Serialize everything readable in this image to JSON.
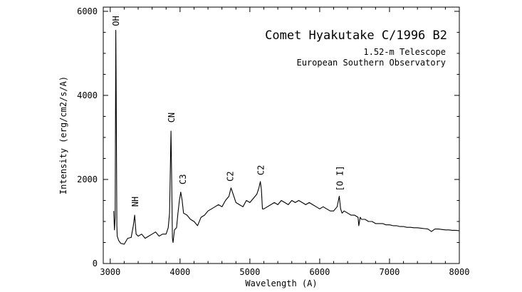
{
  "chart_data": {
    "type": "line",
    "title": "Comet Hyakutake C/1996 B2",
    "subtitle_lines": [
      "1.52-m Telescope",
      "European Southern Observatory"
    ],
    "xlabel": "Wavelength (A)",
    "ylabel": "Intensity (erg/cm2/s/A)",
    "xlim": [
      2900,
      8000
    ],
    "ylim": [
      0,
      6100
    ],
    "xticks": [
      3000,
      4000,
      5000,
      6000,
      7000,
      8000
    ],
    "yticks": [
      0,
      2000,
      4000,
      6000
    ],
    "grid": false,
    "series": [
      {
        "x": [
          3050,
          3060,
          3070,
          3080,
          3085,
          3095,
          3100,
          3120,
          3150,
          3200,
          3250,
          3300,
          3330,
          3350,
          3370,
          3400,
          3450,
          3500,
          3550,
          3600,
          3650,
          3700,
          3750,
          3800,
          3830,
          3850,
          3870,
          3880,
          3890,
          3900,
          3920,
          3950,
          3970,
          3990,
          4010,
          4030,
          4050,
          4100,
          4150,
          4200,
          4250,
          4300,
          4350,
          4400,
          4450,
          4500,
          4550,
          4600,
          4650,
          4700,
          4730,
          4750,
          4800,
          4850,
          4900,
          4950,
          5000,
          5050,
          5100,
          5130,
          5150,
          5165,
          5180,
          5200,
          5250,
          5300,
          5350,
          5400,
          5450,
          5500,
          5550,
          5600,
          5650,
          5700,
          5750,
          5800,
          5850,
          5900,
          5950,
          6000,
          6050,
          6100,
          6150,
          6200,
          6250,
          6280,
          6300,
          6320,
          6350,
          6400,
          6450,
          6500,
          6550,
          6560,
          6580,
          6600,
          6650,
          6700,
          6750,
          6800,
          6850,
          6900,
          6950,
          7000,
          7050,
          7100,
          7150,
          7200,
          7250,
          7300,
          7350,
          7400,
          7450,
          7500,
          7550,
          7600,
          7650,
          7700,
          7750,
          7800,
          7850,
          7900,
          7950,
          8000
        ],
        "y": [
          1250,
          800,
          1100,
          5550,
          4300,
          900,
          650,
          550,
          480,
          460,
          600,
          620,
          900,
          1150,
          700,
          650,
          700,
          600,
          650,
          700,
          750,
          650,
          700,
          700,
          850,
          1200,
          3150,
          2000,
          600,
          500,
          800,
          850,
          1200,
          1500,
          1700,
          1500,
          1200,
          1150,
          1050,
          1000,
          900,
          1100,
          1150,
          1250,
          1300,
          1350,
          1400,
          1350,
          1500,
          1600,
          1800,
          1700,
          1450,
          1400,
          1350,
          1500,
          1450,
          1550,
          1650,
          1800,
          1950,
          1750,
          1300,
          1300,
          1350,
          1400,
          1450,
          1400,
          1500,
          1450,
          1400,
          1500,
          1450,
          1500,
          1450,
          1400,
          1450,
          1400,
          1350,
          1300,
          1350,
          1300,
          1250,
          1250,
          1350,
          1600,
          1300,
          1200,
          1250,
          1200,
          1150,
          1150,
          1100,
          900,
          1100,
          1050,
          1050,
          1000,
          1000,
          950,
          950,
          950,
          920,
          920,
          900,
          900,
          880,
          880,
          860,
          860,
          850,
          850,
          840,
          830,
          820,
          760,
          820,
          820,
          810,
          800,
          800,
          790,
          790,
          780
        ]
      }
    ],
    "annotations": [
      {
        "text": "OH",
        "x": 3085,
        "y": 5650
      },
      {
        "text": "NH",
        "x": 3360,
        "y": 1350
      },
      {
        "text": "CN",
        "x": 3880,
        "y": 3350
      },
      {
        "text": "C3",
        "x": 4040,
        "y": 1880
      },
      {
        "text": "C2",
        "x": 4720,
        "y": 1950
      },
      {
        "text": "C2",
        "x": 5160,
        "y": 2100
      },
      {
        "text": "[O I]",
        "x": 6290,
        "y": 1720
      }
    ]
  }
}
